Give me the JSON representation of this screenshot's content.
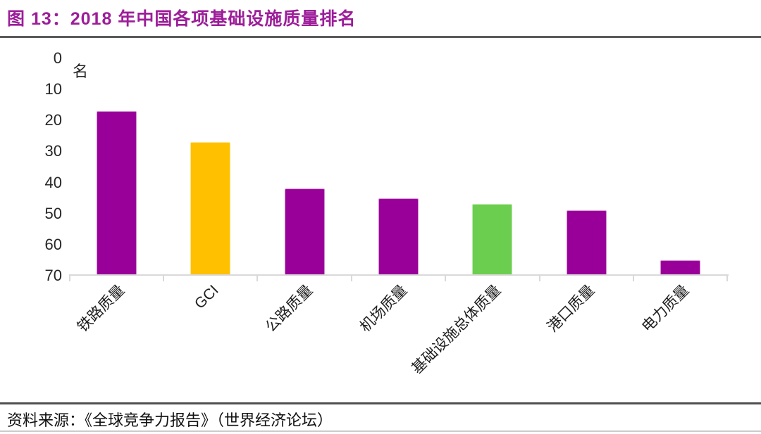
{
  "header": {
    "title": "图 13：2018 年中国各项基础设施质量排名",
    "title_color": "#9c1e99"
  },
  "chart_data": {
    "type": "bar",
    "title": "图 13：2018 年中国各项基础设施质量排名",
    "unit_label": "名",
    "categories": [
      "铁路质量",
      "GCI",
      "公路质量",
      "机场质量",
      "基础设施总体质量",
      "港口质量",
      "电力质量"
    ],
    "values": [
      17,
      27,
      42,
      45,
      47,
      49,
      65
    ],
    "bar_colors": [
      "#990099",
      "#ffc000",
      "#990099",
      "#990099",
      "#6cce4e",
      "#990099",
      "#990099"
    ],
    "yticks": [
      0,
      10,
      20,
      30,
      40,
      50,
      60,
      70
    ],
    "ylim": [
      0,
      70
    ],
    "y_axis_inverted": true,
    "xlabel": "",
    "ylabel": "名",
    "grid": false,
    "legend_position": "none"
  },
  "colors": {
    "accent_purple": "#990099",
    "accent_gold": "#ffc000",
    "accent_green": "#6cce4e",
    "axis_line": "#d9d9d9",
    "rule_dark": "#4f4f4f"
  },
  "source": {
    "text": "资料来源：《全球竞争力报告》（世界经济论坛）"
  }
}
